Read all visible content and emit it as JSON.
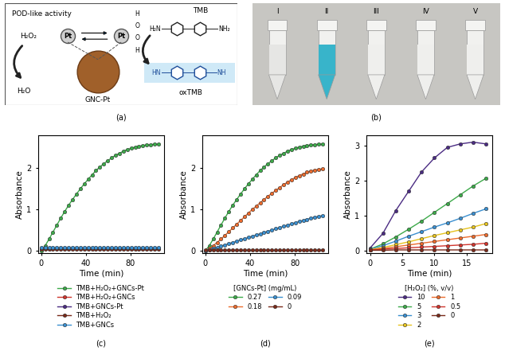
{
  "panel_labels": [
    "(a)",
    "(b)",
    "(c)",
    "(d)",
    "(e)"
  ],
  "diagram": {
    "title": "POD-like activity",
    "substrate": "H₂O₂",
    "product": "H₂O",
    "catalyst_site": "Pt",
    "bound_peroxide": [
      "H",
      "O",
      "O",
      "H"
    ],
    "particle": "GNC-Pt",
    "reactant": "TMB",
    "reactant_groups": [
      "H₂N",
      "NH₂"
    ],
    "oxidized": "oxTMB",
    "oxidized_groups": [
      "HN",
      "NH"
    ]
  },
  "photo": {
    "tubes": [
      "I",
      "II",
      "III",
      "IV",
      "V"
    ],
    "colors": [
      "#e6e6e4",
      "#38b4ca",
      "#efefed",
      "#efefed",
      "#efefed"
    ]
  },
  "chart_data": [
    {
      "type": "line",
      "x_label": "Time (min)",
      "y_label": "Absorbance",
      "marker": "o",
      "legend": "upper center",
      "x": [
        0,
        3.5,
        7,
        10.5,
        14,
        17.5,
        21,
        24.5,
        28,
        31.5,
        35,
        38.5,
        42,
        45.5,
        49,
        52.5,
        56,
        59.5,
        63,
        66.5,
        70,
        73.5,
        77,
        80.5,
        84,
        87.5,
        91,
        94.5,
        98,
        101.5,
        105
      ],
      "xlim": [
        -3,
        110
      ],
      "xticks": [
        0,
        40,
        80
      ],
      "ylim": [
        -0.05,
        2.8
      ],
      "yticks": [
        0,
        1,
        2
      ],
      "series": [
        {
          "name": "TMB+H₂O₂+GNCs-Pt",
          "color": "#3daa4a",
          "values": [
            0.0,
            0.12,
            0.28,
            0.45,
            0.62,
            0.79,
            0.95,
            1.1,
            1.24,
            1.37,
            1.5,
            1.62,
            1.73,
            1.84,
            1.94,
            2.03,
            2.11,
            2.18,
            2.25,
            2.31,
            2.36,
            2.41,
            2.45,
            2.48,
            2.51,
            2.53,
            2.55,
            2.56,
            2.57,
            2.58,
            2.58
          ]
        },
        {
          "name": "TMB+H₂O₂+GNCs",
          "color": "#d0342c",
          "values": [
            0.06,
            0.06,
            0.06,
            0.06,
            0.06,
            0.06,
            0.06,
            0.06,
            0.06,
            0.06,
            0.06,
            0.06,
            0.06,
            0.06,
            0.06,
            0.06,
            0.06,
            0.06,
            0.06,
            0.06,
            0.06,
            0.06,
            0.06,
            0.06,
            0.06,
            0.06,
            0.06,
            0.06,
            0.06,
            0.06,
            0.06
          ]
        },
        {
          "name": "TMB+GNCs-Pt",
          "color": "#4b2c83",
          "values": [
            0.05,
            0.05,
            0.05,
            0.05,
            0.05,
            0.05,
            0.05,
            0.05,
            0.05,
            0.05,
            0.05,
            0.05,
            0.05,
            0.05,
            0.05,
            0.05,
            0.05,
            0.05,
            0.05,
            0.05,
            0.05,
            0.05,
            0.05,
            0.05,
            0.05,
            0.05,
            0.05,
            0.05,
            0.05,
            0.05,
            0.05
          ]
        },
        {
          "name": "TMB+H₂O₂",
          "color": "#7a2a1a",
          "values": [
            0.04,
            0.04,
            0.04,
            0.04,
            0.04,
            0.04,
            0.04,
            0.04,
            0.04,
            0.04,
            0.04,
            0.04,
            0.04,
            0.04,
            0.04,
            0.04,
            0.04,
            0.04,
            0.04,
            0.04,
            0.04,
            0.04,
            0.04,
            0.04,
            0.04,
            0.04,
            0.04,
            0.04,
            0.04,
            0.04,
            0.04
          ]
        },
        {
          "name": "TMB+GNCs",
          "color": "#3a8fd0",
          "values": [
            0.07,
            0.07,
            0.07,
            0.07,
            0.07,
            0.07,
            0.07,
            0.07,
            0.07,
            0.07,
            0.07,
            0.07,
            0.07,
            0.07,
            0.07,
            0.07,
            0.07,
            0.07,
            0.07,
            0.07,
            0.07,
            0.07,
            0.07,
            0.07,
            0.07,
            0.07,
            0.07,
            0.07,
            0.07,
            0.07,
            0.07
          ]
        }
      ]
    },
    {
      "type": "line",
      "x_label": "Time (min)",
      "y_label": "Absorbance",
      "marker": "o",
      "legend": "upper center",
      "legend_title": "[GNCs-Pt] (mg/mL)",
      "x": [
        0,
        3.5,
        7,
        10.5,
        14,
        17.5,
        21,
        24.5,
        28,
        31.5,
        35,
        38.5,
        42,
        45.5,
        49,
        52.5,
        56,
        59.5,
        63,
        66.5,
        70,
        73.5,
        77,
        80.5,
        84,
        87.5,
        91,
        94.5,
        98,
        101.5,
        105
      ],
      "xlim": [
        -3,
        110
      ],
      "xticks": [
        0,
        40,
        80
      ],
      "ylim": [
        -0.05,
        2.8
      ],
      "yticks": [
        0,
        1,
        2
      ],
      "series": [
        {
          "name": "0.27",
          "color": "#3daa4a",
          "values": [
            0.0,
            0.12,
            0.28,
            0.45,
            0.62,
            0.79,
            0.95,
            1.1,
            1.24,
            1.37,
            1.5,
            1.62,
            1.73,
            1.84,
            1.94,
            2.03,
            2.11,
            2.18,
            2.25,
            2.31,
            2.36,
            2.41,
            2.45,
            2.48,
            2.51,
            2.53,
            2.55,
            2.56,
            2.57,
            2.58,
            2.58
          ]
        },
        {
          "name": "0.18",
          "color": "#ec6b2d",
          "values": [
            0.0,
            0.05,
            0.12,
            0.2,
            0.28,
            0.37,
            0.46,
            0.55,
            0.64,
            0.73,
            0.82,
            0.91,
            1.0,
            1.08,
            1.16,
            1.24,
            1.32,
            1.39,
            1.46,
            1.53,
            1.6,
            1.66,
            1.72,
            1.77,
            1.82,
            1.86,
            1.9,
            1.93,
            1.95,
            1.97,
            1.98
          ]
        },
        {
          "name": "0.09",
          "color": "#3a8fd0",
          "values": [
            0.0,
            0.02,
            0.05,
            0.08,
            0.11,
            0.14,
            0.17,
            0.2,
            0.23,
            0.26,
            0.29,
            0.32,
            0.35,
            0.38,
            0.41,
            0.44,
            0.47,
            0.5,
            0.53,
            0.56,
            0.59,
            0.62,
            0.65,
            0.68,
            0.71,
            0.73,
            0.76,
            0.79,
            0.81,
            0.83,
            0.85
          ]
        },
        {
          "name": "0",
          "color": "#7a2a1a",
          "values": [
            0.02,
            0.02,
            0.02,
            0.02,
            0.02,
            0.02,
            0.02,
            0.02,
            0.02,
            0.02,
            0.02,
            0.02,
            0.02,
            0.02,
            0.02,
            0.02,
            0.02,
            0.02,
            0.02,
            0.02,
            0.02,
            0.02,
            0.02,
            0.02,
            0.02,
            0.02,
            0.02,
            0.02,
            0.02,
            0.02,
            0.02
          ]
        }
      ]
    },
    {
      "type": "line",
      "x_label": "Time (min)",
      "y_label": "Absorbance",
      "marker": "o",
      "legend": "upper center",
      "legend_title": "[H₂O₂] (%, v/v)",
      "x": [
        0,
        2,
        4,
        6,
        8,
        10,
        12,
        14,
        16,
        18
      ],
      "xlim": [
        -0.6,
        19
      ],
      "xticks": [
        0,
        5,
        10,
        15
      ],
      "ylim": [
        -0.05,
        3.3
      ],
      "yticks": [
        0,
        1,
        2,
        3
      ],
      "series": [
        {
          "name": "10",
          "color": "#4b2c83",
          "values": [
            0.08,
            0.5,
            1.15,
            1.7,
            2.25,
            2.65,
            2.95,
            3.05,
            3.1,
            3.05
          ]
        },
        {
          "name": "5",
          "color": "#3daa4a",
          "values": [
            0.05,
            0.2,
            0.4,
            0.62,
            0.85,
            1.1,
            1.35,
            1.6,
            1.85,
            2.07
          ]
        },
        {
          "name": "3",
          "color": "#3a8fd0",
          "values": [
            0.05,
            0.15,
            0.28,
            0.42,
            0.55,
            0.68,
            0.8,
            0.93,
            1.07,
            1.2
          ]
        },
        {
          "name": "2",
          "color": "#e6c31e",
          "values": [
            0.04,
            0.1,
            0.18,
            0.26,
            0.35,
            0.44,
            0.52,
            0.6,
            0.68,
            0.78
          ]
        },
        {
          "name": "1",
          "color": "#ec6b2d",
          "values": [
            0.03,
            0.07,
            0.12,
            0.17,
            0.22,
            0.27,
            0.32,
            0.37,
            0.42,
            0.47
          ]
        },
        {
          "name": "0.5",
          "color": "#d0342c",
          "values": [
            0.03,
            0.05,
            0.07,
            0.09,
            0.11,
            0.13,
            0.15,
            0.17,
            0.19,
            0.22
          ]
        },
        {
          "name": "0",
          "color": "#7a2a1a",
          "values": [
            0.02,
            0.02,
            0.03,
            0.03,
            0.03,
            0.03,
            0.03,
            0.03,
            0.03,
            0.03
          ]
        }
      ]
    }
  ]
}
